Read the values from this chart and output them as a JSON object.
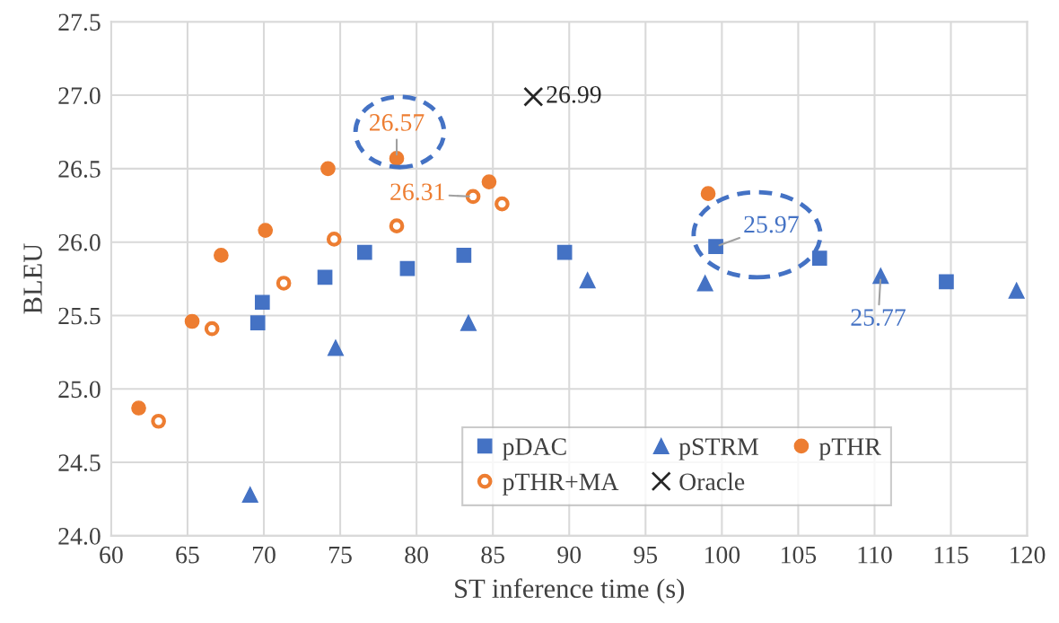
{
  "chart_data": {
    "type": "scatter",
    "xlabel": "ST inference time (s)",
    "ylabel": "BLEU",
    "xlim": [
      60,
      120
    ],
    "xticks": [
      60,
      65,
      70,
      75,
      80,
      85,
      90,
      95,
      100,
      105,
      110,
      115,
      120
    ],
    "ylim": [
      24.0,
      27.5
    ],
    "yticks": [
      {
        "value": 24.0,
        "label": "24.0"
      },
      24.5,
      {
        "value": 25.0,
        "label": "25.0"
      },
      25.5,
      {
        "value": 26.0,
        "label": "26.0"
      },
      26.5,
      {
        "value": 27.0,
        "label": "27.0"
      },
      27.5
    ],
    "grid": true,
    "legend": "bottom right",
    "series": [
      {
        "name": "pDAC",
        "color": "#4472c4",
        "marker": "square",
        "x": [
          69.6,
          69.9,
          74.0,
          76.6,
          79.4,
          83.1,
          89.7,
          99.6,
          106.4,
          114.7
        ],
        "values": [
          25.45,
          25.59,
          25.76,
          25.93,
          25.82,
          25.91,
          25.93,
          25.97,
          25.89,
          25.73
        ]
      },
      {
        "name": "pSTRM",
        "color": "#4472c4",
        "marker": "triangle",
        "x": [
          69.1,
          74.7,
          83.4,
          91.2,
          98.9,
          110.4,
          119.3
        ],
        "values": [
          24.28,
          25.28,
          25.45,
          25.74,
          25.72,
          25.77,
          25.67
        ]
      },
      {
        "name": "pTHR",
        "color": "#ed7d31",
        "marker": "circle",
        "x": [
          61.8,
          65.3,
          67.2,
          70.1,
          74.2,
          78.7,
          84.75,
          99.1
        ],
        "values": [
          24.87,
          25.46,
          25.91,
          26.08,
          26.5,
          26.57,
          26.41,
          26.33
        ]
      },
      {
        "name": "pTHR+MA",
        "color": "#ed7d31",
        "marker": "open circle",
        "x": [
          63.1,
          66.6,
          71.3,
          74.6,
          78.7,
          83.7,
          85.6
        ],
        "values": [
          24.78,
          25.41,
          25.72,
          26.02,
          26.11,
          26.31,
          26.26
        ]
      },
      {
        "name": "Oracle",
        "color": "#262626",
        "marker": "cross",
        "x": [
          87.65
        ],
        "values": [
          26.99
        ]
      }
    ],
    "annotations": [
      {
        "text": "26.57",
        "x": 78.7,
        "y": 26.57
      },
      {
        "text": "26.31",
        "x": 83.7,
        "y": 26.31
      },
      {
        "text": "25.97",
        "x": 99.6,
        "y": 25.97
      },
      {
        "text": "25.77",
        "x": 110.4,
        "y": 25.77
      },
      {
        "text": "26.99",
        "x": 87.65,
        "y": 26.99
      }
    ]
  }
}
